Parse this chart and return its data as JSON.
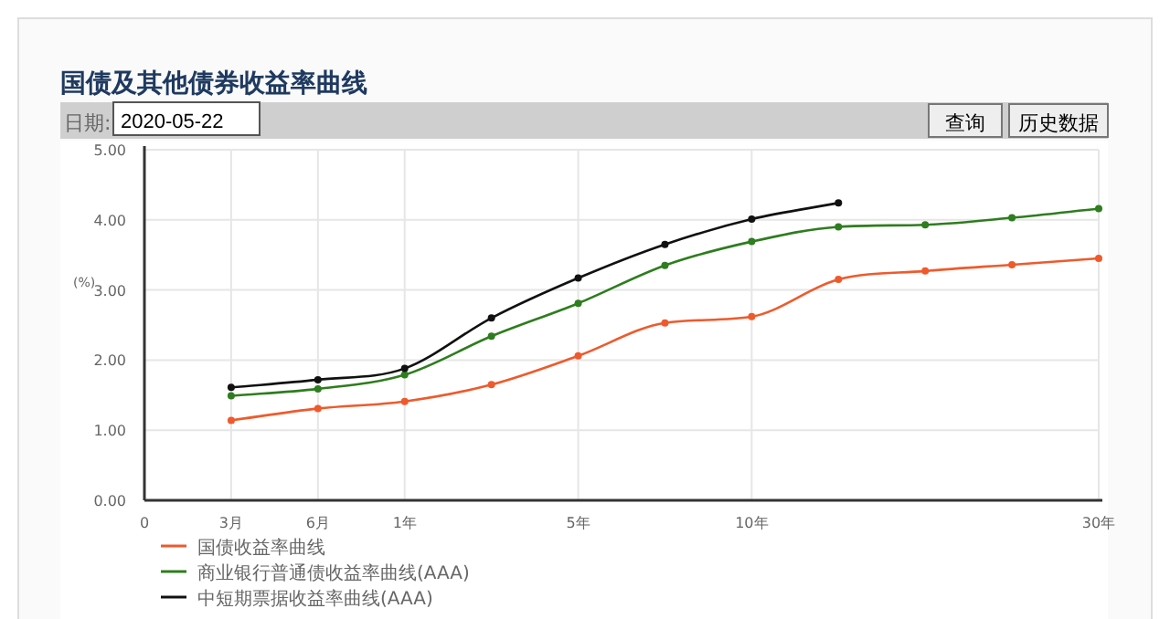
{
  "chart_data": {
    "type": "line",
    "title": "国债及其他债券收益率曲线",
    "ylabel": "(%)",
    "annotations": [
      "日期:",
      "2020-05-22",
      "查询",
      "历史数据"
    ],
    "categories": [
      "0",
      "3月",
      "6月",
      "1年",
      null,
      "5年",
      null,
      "10年",
      null,
      null,
      null,
      "30年"
    ],
    "ylim": [
      0,
      5
    ],
    "yticks": [
      {
        "value": 0,
        "label": "0.00"
      },
      {
        "value": 1,
        "label": "1.00"
      },
      {
        "value": 2,
        "label": "2.00"
      },
      {
        "value": 3,
        "label": "3.00"
      },
      {
        "value": 4,
        "label": "4.00"
      },
      {
        "value": 5,
        "label": "5.00"
      }
    ],
    "grid": true,
    "legend": "bottom",
    "marker": "circle",
    "line_style": "solid",
    "series": [
      {
        "name": "国债收益率曲线",
        "color": "#ef5a2c",
        "values": [
          null,
          1.14,
          1.31,
          1.41,
          1.65,
          2.06,
          2.53,
          2.62,
          3.15,
          3.27,
          3.36,
          3.45
        ]
      },
      {
        "name": "商业银行普通债收益率曲线(AAA)",
        "color": "#2e7d1e",
        "values": [
          null,
          1.49,
          1.59,
          1.79,
          2.34,
          2.81,
          3.35,
          3.69,
          3.9,
          3.93,
          4.03,
          4.16
        ]
      },
      {
        "name": "中短期票据收益率曲线(AAA)",
        "color": "#111111",
        "values": [
          null,
          1.61,
          1.72,
          1.88,
          2.6,
          3.17,
          3.65,
          4.01,
          4.24,
          null,
          null,
          null
        ]
      }
    ]
  }
}
